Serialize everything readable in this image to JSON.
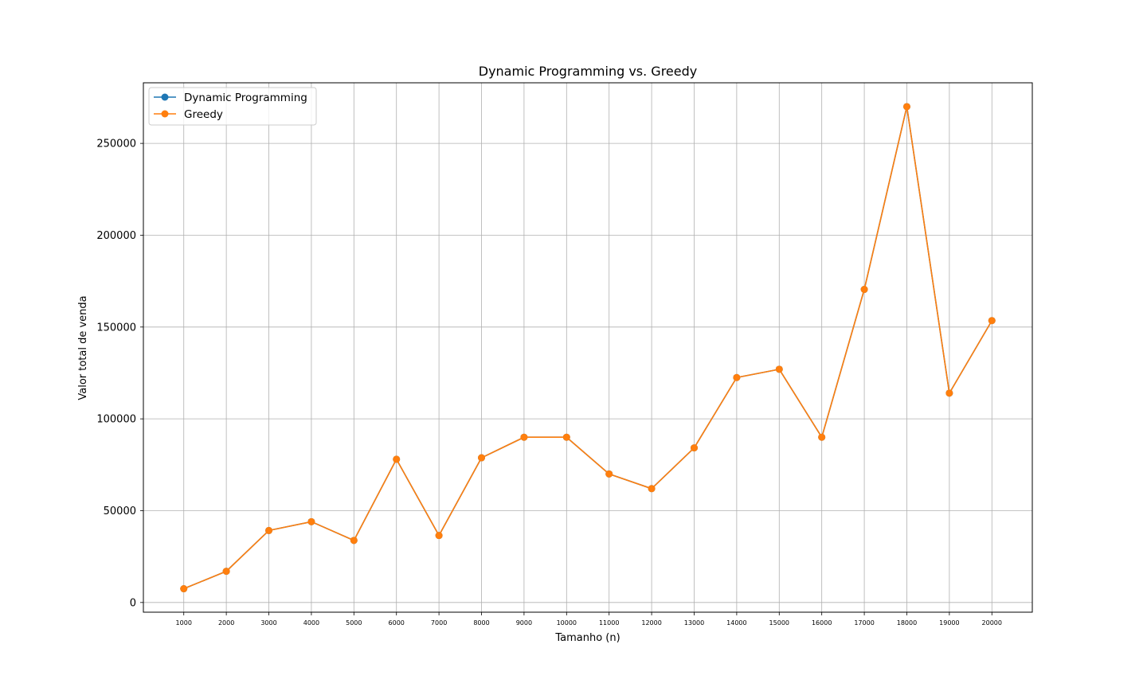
{
  "chart_data": {
    "type": "line",
    "title": "Dynamic Programming vs. Greedy",
    "xlabel": "Tamanho (n)",
    "ylabel": "Valor total de venda",
    "x": [
      1000,
      2000,
      3000,
      4000,
      5000,
      6000,
      7000,
      8000,
      9000,
      10000,
      11000,
      12000,
      13000,
      14000,
      15000,
      16000,
      17000,
      18000,
      19000,
      20000
    ],
    "x_tick_labels": [
      "1000",
      "2000",
      "3000",
      "4000",
      "5000",
      "6000",
      "7000",
      "8000",
      "9000",
      "10000",
      "11000",
      "12000",
      "13000",
      "14000",
      "15000",
      "16000",
      "17000",
      "18000",
      "19000",
      "20000"
    ],
    "y_ticks": [
      0,
      50000,
      100000,
      150000,
      200000,
      250000
    ],
    "y_tick_labels": [
      "0",
      "50000",
      "100000",
      "150000",
      "200000",
      "250000"
    ],
    "xlim": [
      50,
      20950
    ],
    "ylim": [
      -5275,
      283000
    ],
    "grid": true,
    "legend_position": "top-left",
    "series": [
      {
        "name": "Dynamic Programming",
        "color": "#1f77b4",
        "marker": "circle",
        "values": [
          7500,
          17000,
          39200,
          44000,
          33800,
          78000,
          36500,
          78800,
          90000,
          90000,
          70000,
          62000,
          84200,
          122500,
          127000,
          90000,
          170500,
          270000,
          114000,
          153500
        ]
      },
      {
        "name": "Greedy",
        "color": "#ff7f0e",
        "marker": "circle",
        "values": [
          7500,
          17000,
          39200,
          44000,
          33800,
          78000,
          36500,
          78800,
          90000,
          90000,
          70000,
          62000,
          84200,
          122500,
          127000,
          90000,
          170500,
          270000,
          114000,
          153500
        ]
      }
    ]
  }
}
